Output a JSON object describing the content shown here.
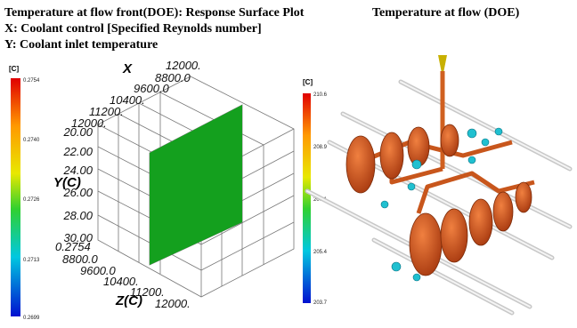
{
  "left_panel": {
    "title": "Temperature at flow front(DOE): Response Surface Plot",
    "x_label": "X: Coolant control [Specified Reynolds number]",
    "y_label": "Y: Coolant inlet temperature",
    "colorbar": {
      "unit": "[C]",
      "labels": [
        "0.2754",
        "0.2740",
        "0.2726",
        "0.2713",
        "0.2699"
      ]
    },
    "plot": {
      "x_axis": "X",
      "y_axis": "Y(C)",
      "z_axis": "Z(C)",
      "x_ticks": [
        "12000.",
        "8800.0",
        "9600.0",
        "10400.",
        "11200.",
        "12000."
      ],
      "y_ticks": [
        "20.00",
        "22.00",
        "24.00",
        "26.00",
        "28.00",
        "30.00"
      ],
      "z_ticks": [
        "0.2754",
        "8800.0",
        "9600.0",
        "10400.",
        "11200.",
        "12000."
      ]
    }
  },
  "right_panel": {
    "title": "Temperature at flow (DOE)",
    "colorbar": {
      "unit": "[C]",
      "labels": [
        "210.6",
        "208.9",
        "207.1",
        "205.4",
        "203.7"
      ]
    }
  }
}
